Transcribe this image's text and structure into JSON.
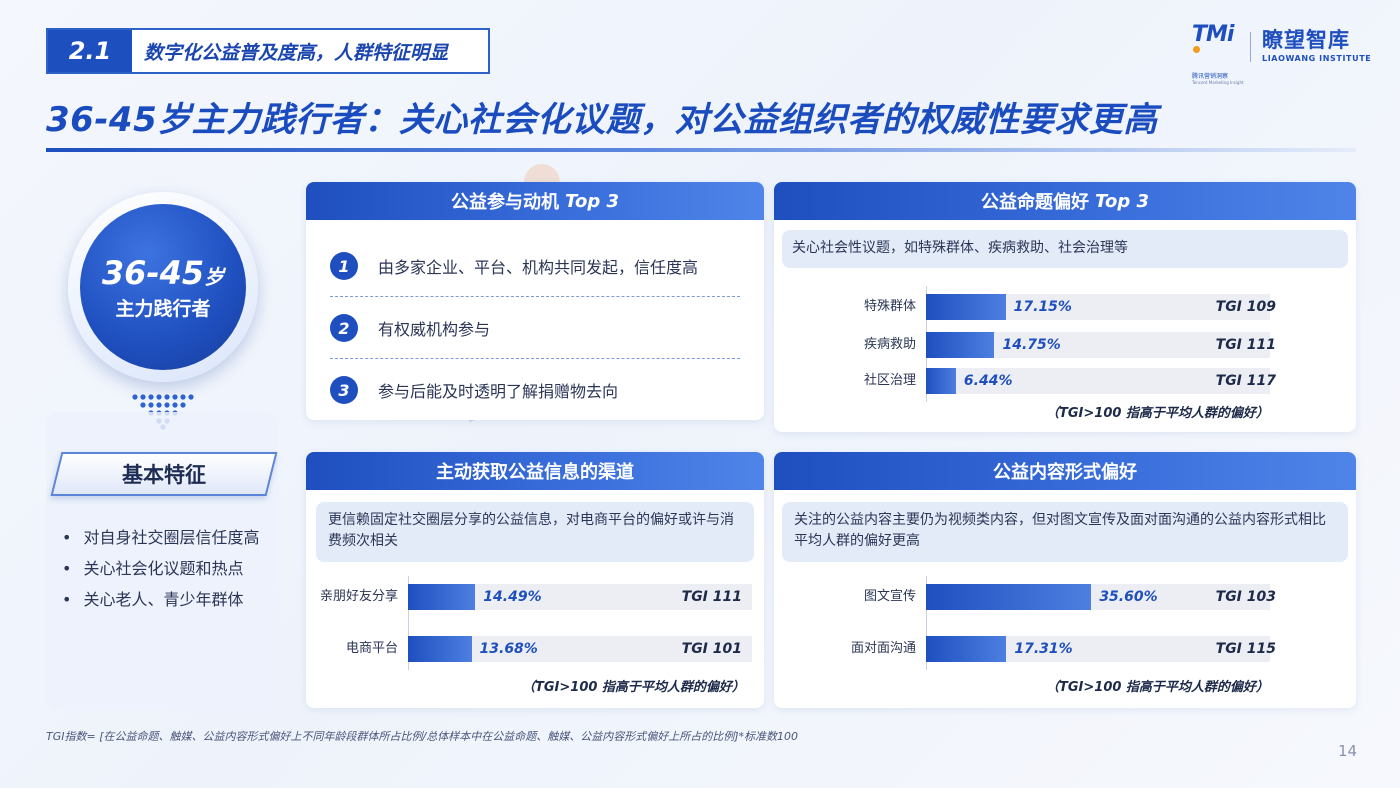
{
  "section": {
    "number": "2.1",
    "title": "数字化公益普及度高，人群特征明显"
  },
  "logos": {
    "tmi": {
      "mark": "TMi",
      "sub_cn": "腾讯营销洞察",
      "sub_en": "Tencent Marketing Insight"
    },
    "liaowang": {
      "cn": "瞭望智库",
      "en": "LIAOWANG INSTITUTE"
    }
  },
  "main_title": "36-45岁主力践行者：关心社会化议题，对公益组织者的权威性要求更高",
  "persona": {
    "age": "36-45",
    "age_unit": "岁",
    "role": "主力践行者"
  },
  "features": {
    "title": "基本特征",
    "items": [
      "对自身社交圈层信任度高",
      "关心社会化议题和热点",
      "关心老人、青少年群体"
    ]
  },
  "motivation": {
    "title": "公益参与动机",
    "title_en": "Top 3",
    "items": [
      {
        "num": "1",
        "text": "由多家企业、平台、机构共同发起，信任度高"
      },
      {
        "num": "2",
        "text": "有权威机构参与"
      },
      {
        "num": "3",
        "text": "参与后能及时透明了解捐赠物去向"
      }
    ]
  },
  "topic": {
    "title": "公益命题偏好",
    "title_en": "Top 3",
    "desc": "关心社会性议题，如特殊群体、疾病救助、社会治理等",
    "note": "（TGI>100 指高于平均人群的偏好）"
  },
  "channel": {
    "title": "主动获取公益信息的渠道",
    "desc": "更信赖固定社交圈层分享的公益信息，对电商平台的偏好或许与消费频次相关",
    "note": "（TGI>100 指高于平均人群的偏好）"
  },
  "format": {
    "title": "公益内容形式偏好",
    "desc": "关注的公益内容主要仍为视频类内容，但对图文宣传及面对面沟通的公益内容形式相比平均人群的偏好更高",
    "note": "（TGI>100 指高于平均人群的偏好）"
  },
  "chart_data": [
    {
      "type": "bar",
      "orientation": "horizontal",
      "title": "公益命题偏好 Top 3",
      "categories": [
        "特殊群体",
        "疾病救助",
        "社区治理"
      ],
      "values": [
        17.15,
        14.75,
        6.44
      ],
      "value_labels": [
        "17.15%",
        "14.75%",
        "6.44%"
      ],
      "tgi_labels": [
        "TGI  109",
        "TGI  111",
        "TGI  117"
      ],
      "tgi": [
        109,
        111,
        117
      ]
    },
    {
      "type": "bar",
      "orientation": "horizontal",
      "title": "主动获取公益信息的渠道",
      "categories": [
        "亲朋好友分享",
        "电商平台"
      ],
      "values": [
        14.49,
        13.68
      ],
      "value_labels": [
        "14.49%",
        "13.68%"
      ],
      "tgi_labels": [
        "TGI  111",
        "TGI  101"
      ],
      "tgi": [
        111,
        101
      ]
    },
    {
      "type": "bar",
      "orientation": "horizontal",
      "title": "公益内容形式偏好",
      "categories": [
        "图文宣传",
        "面对面沟通"
      ],
      "values": [
        35.6,
        17.31
      ],
      "value_labels": [
        "35.60%",
        "17.31%"
      ],
      "tgi_labels": [
        "TGI  103",
        "TGI  115"
      ],
      "tgi": [
        103,
        115
      ]
    }
  ],
  "footnote": "TGI指数= [在公益命题、触媒、公益内容形式偏好上不同年龄段群体所占比例/总体样本中在公益命题、触媒、公益内容形式偏好上所占的比例]*标准数100",
  "page_number": "14"
}
